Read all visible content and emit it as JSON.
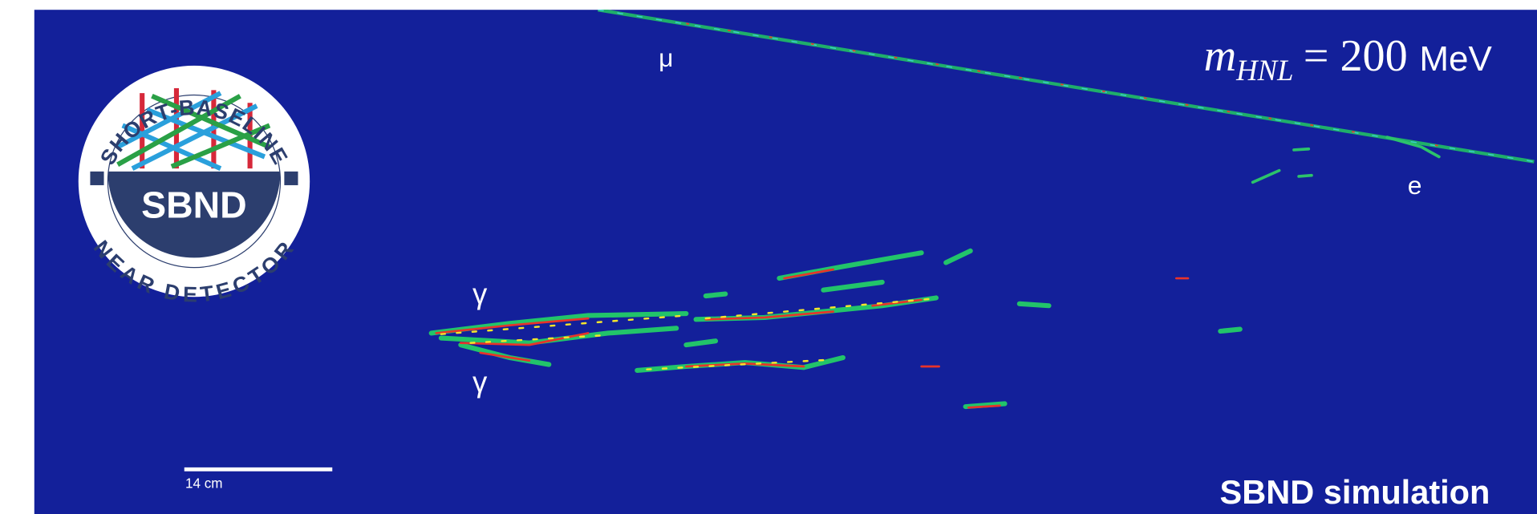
{
  "logo": {
    "top_text": "SHORT-BASELINE",
    "center_text": "SBND",
    "bottom_text": "NEAR DETECTOR"
  },
  "labels": {
    "muon": "μ",
    "electron": "e",
    "photon_1": "γ",
    "photon_2": "γ"
  },
  "mass_label": {
    "symbol": "m",
    "subscript": "HNL",
    "equals_value": "= 200",
    "unit": "MeV"
  },
  "scale_bar": "14 cm",
  "footer": "SBND simulation"
}
